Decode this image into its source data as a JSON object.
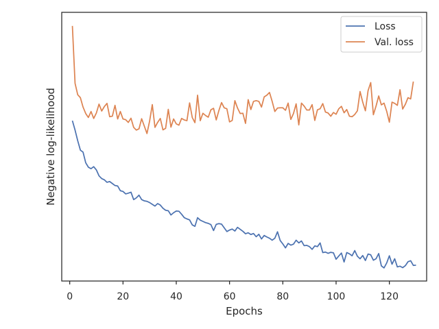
{
  "chart_data": {
    "type": "line",
    "title": "",
    "xlabel": "Epochs",
    "ylabel": "Negative log-likelihood",
    "xlim": [
      -3,
      134
    ],
    "ylim": [
      0,
      100
    ],
    "y_ticks_shown": false,
    "x_ticks": [
      0,
      20,
      40,
      60,
      80,
      100,
      120
    ],
    "x_tick_labels": [
      "0",
      "20",
      "40",
      "60",
      "80",
      "100",
      "120"
    ],
    "grid": false,
    "legend_position": "top-right",
    "series": [
      {
        "name": "Loss",
        "color": "#4c72b0",
        "x_start": 1,
        "values": [
          61.2,
          57.4,
          53.1,
          49.3,
          48.5,
          44.2,
          42.4,
          41.8,
          42.6,
          41.3,
          38.9,
          37.8,
          37.3,
          36.3,
          36.6,
          35.8,
          35.0,
          34.8,
          32.9,
          32.6,
          31.6,
          31.9,
          32.3,
          29.3,
          30.0,
          31.1,
          29.3,
          28.8,
          28.6,
          28.1,
          27.4,
          26.7,
          27.7,
          27.1,
          25.8,
          25.0,
          24.8,
          23.1,
          24.0,
          24.7,
          24.6,
          23.4,
          22.0,
          21.5,
          21.1,
          19.1,
          18.5,
          22.0,
          21.0,
          20.5,
          20.0,
          19.7,
          19.2,
          16.8,
          19.3,
          19.6,
          19.4,
          17.9,
          16.4,
          17.0,
          17.4,
          16.6,
          18.1,
          17.3,
          16.5,
          15.5,
          15.9,
          15.2,
          15.6,
          14.3,
          15.3,
          13.4,
          14.8,
          14.2,
          13.7,
          12.9,
          13.7,
          16.3,
          12.8,
          11.4,
          9.8,
          11.6,
          10.9,
          11.3,
          12.9,
          11.8,
          12.6,
          10.7,
          10.8,
          10.3,
          9.2,
          10.6,
          10.3,
          11.8,
          7.9,
          8.1,
          7.6,
          8.0,
          7.8,
          5.2,
          6.5,
          7.7,
          4.1,
          7.9,
          7.4,
          6.6,
          8.7,
          6.4,
          5.4,
          6.7,
          4.7,
          7.3,
          7.0,
          4.8,
          5.4,
          7.5,
          2.5,
          1.7,
          3.7,
          6.6,
          3.2,
          5.4,
          2.1,
          2.4,
          1.8,
          2.6,
          4.2,
          4.6,
          2.7,
          2.8
        ],
        "values_end_cap": 2.8
      },
      {
        "name": "Val. loss",
        "color": "#dd8452",
        "x_start": 1,
        "values": [
          99.5,
          76.3,
          71.7,
          70.5,
          66.7,
          64.1,
          62.5,
          64.9,
          62.1,
          64.3,
          67.9,
          65.1,
          66.9,
          68.2,
          62.8,
          63.0,
          67.4,
          61.9,
          64.9,
          61.9,
          61.6,
          60.5,
          62.2,
          58.5,
          57.4,
          57.9,
          62.0,
          59.0,
          56.0,
          61.1,
          67.7,
          58.5,
          60.5,
          62.1,
          57.5,
          58.1,
          65.8,
          58.6,
          61.9,
          59.9,
          59.4,
          62.1,
          61.5,
          61.2,
          68.4,
          62.5,
          60.4,
          71.5,
          61.2,
          64.2,
          63.3,
          62.6,
          65.6,
          66.2,
          61.5,
          65.3,
          68.5,
          66.4,
          66.0,
          60.7,
          61.3,
          69.3,
          66.3,
          64.1,
          64.2,
          60.1,
          69.7,
          65.7,
          69.0,
          69.3,
          69.0,
          66.7,
          70.8,
          71.5,
          72.6,
          69.0,
          64.9,
          66.3,
          66.4,
          66.4,
          65.4,
          68.3,
          61.7,
          64.1,
          68.0,
          59.5,
          68.3,
          67.1,
          65.5,
          65.5,
          67.7,
          61.3,
          65.6,
          66.0,
          68.1,
          64.7,
          64.3,
          63.0,
          64.5,
          63.8,
          66.0,
          67.0,
          64.4,
          65.7,
          63.0,
          62.8,
          63.7,
          65.2,
          73.0,
          68.7,
          65.2,
          73.3,
          76.6,
          63.6,
          67.1,
          71.2,
          67.6,
          68.3,
          65.0,
          60.6,
          68.7,
          68.2,
          67.4,
          73.7,
          65.9,
          67.8,
          70.5,
          70.0,
          77.0
        ],
        "values_end_cap": 77.0
      }
    ]
  }
}
